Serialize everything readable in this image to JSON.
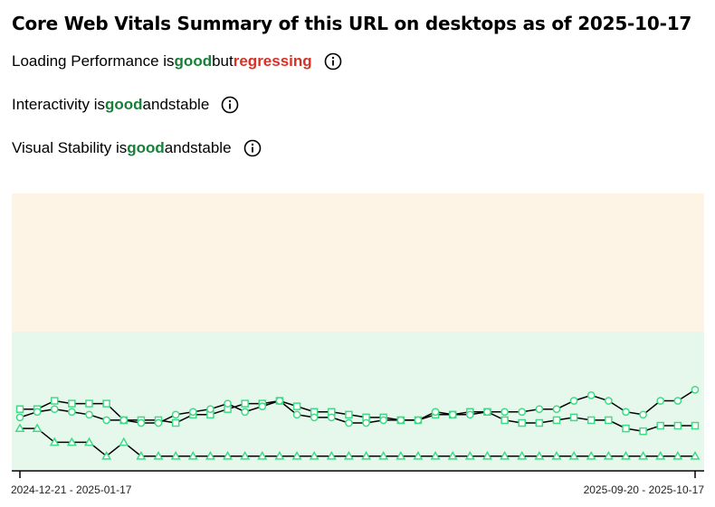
{
  "title": "Core Web Vitals Summary of this URL on desktops as of 2025-10-17",
  "statuses": [
    {
      "prefix": "Loading Performance is ",
      "rating": "good",
      "middle": " but ",
      "trend": "regressing"
    },
    {
      "prefix": "Interactivity is ",
      "rating": "good",
      "middle": " and ",
      "trend": "stable"
    },
    {
      "prefix": "Visual Stability is ",
      "rating": "good",
      "middle": " and ",
      "trend": "stable"
    }
  ],
  "colors": {
    "good": "#188038",
    "bad": "#d93025",
    "band_needs_improvement": "#fdf4e5",
    "band_good": "#e6f8ec",
    "marker_stroke": "#3ddc84",
    "line": "#000000"
  },
  "icons": [
    "info-icon",
    "info-icon",
    "info-icon"
  ],
  "chart_data": {
    "type": "line",
    "x_labels": [
      "2024-12-21 - 2025-01-17",
      "2025-09-20 - 2025-10-17"
    ],
    "x_count": 40,
    "ylim": [
      0,
      1
    ],
    "bands": [
      {
        "name": "good",
        "from": 0,
        "to": 0.5
      },
      {
        "name": "needs-improvement",
        "from": 0.5,
        "to": 1
      }
    ],
    "series": [
      {
        "marker": "square",
        "values": [
          0.22,
          0.22,
          0.25,
          0.24,
          0.24,
          0.24,
          0.18,
          0.18,
          0.18,
          0.17,
          0.2,
          0.2,
          0.22,
          0.24,
          0.24,
          0.25,
          0.23,
          0.21,
          0.21,
          0.2,
          0.19,
          0.19,
          0.18,
          0.18,
          0.2,
          0.2,
          0.21,
          0.21,
          0.18,
          0.17,
          0.17,
          0.18,
          0.19,
          0.18,
          0.18,
          0.15,
          0.14,
          0.16,
          0.16,
          0.16
        ]
      },
      {
        "marker": "circle",
        "values": [
          0.19,
          0.21,
          0.22,
          0.21,
          0.2,
          0.18,
          0.18,
          0.17,
          0.17,
          0.2,
          0.21,
          0.22,
          0.24,
          0.21,
          0.23,
          0.25,
          0.2,
          0.19,
          0.19,
          0.17,
          0.17,
          0.18,
          0.18,
          0.18,
          0.21,
          0.2,
          0.2,
          0.21,
          0.21,
          0.21,
          0.22,
          0.22,
          0.25,
          0.27,
          0.25,
          0.21,
          0.2,
          0.25,
          0.25,
          0.29
        ]
      },
      {
        "marker": "triangle",
        "values": [
          0.15,
          0.15,
          0.1,
          0.1,
          0.1,
          0.05,
          0.1,
          0.05,
          0.05,
          0.05,
          0.05,
          0.05,
          0.05,
          0.05,
          0.05,
          0.05,
          0.05,
          0.05,
          0.05,
          0.05,
          0.05,
          0.05,
          0.05,
          0.05,
          0.05,
          0.05,
          0.05,
          0.05,
          0.05,
          0.05,
          0.05,
          0.05,
          0.05,
          0.05,
          0.05,
          0.05,
          0.05,
          0.05,
          0.05,
          0.05
        ]
      }
    ]
  }
}
